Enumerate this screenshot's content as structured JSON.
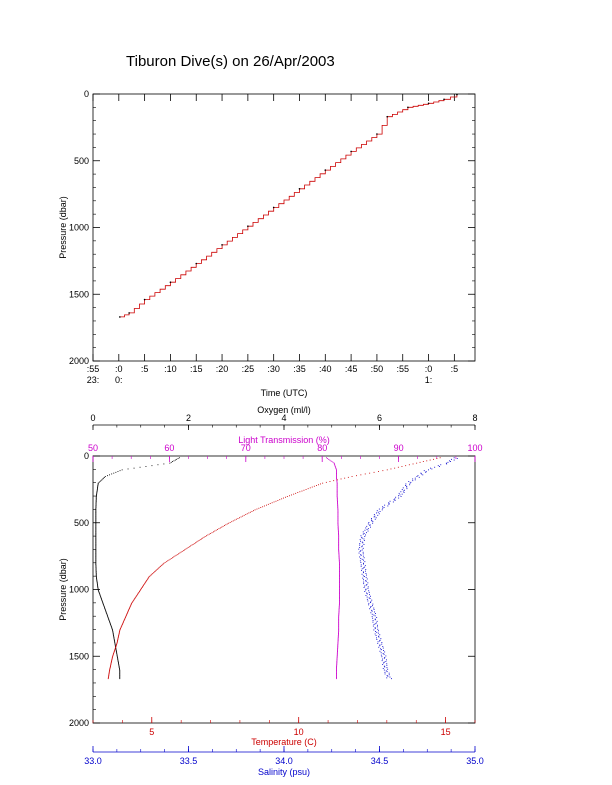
{
  "title": "Tiburon Dive(s) on 26/Apr/2003",
  "chart_data": [
    {
      "type": "line",
      "name": "pressure-vs-time",
      "xlabel": "Time (UTC)",
      "ylabel": "Pressure (dbar)",
      "ylim": [
        2000,
        0
      ],
      "yticks": [
        0,
        500,
        1000,
        1500,
        2000
      ],
      "xticks": [
        {
          "minutes": -5,
          "top": ":55",
          "bottom": "23:"
        },
        {
          "minutes": 0,
          "top": ":0",
          "bottom": "0:"
        },
        {
          "minutes": 5,
          "top": ":5",
          "bottom": ""
        },
        {
          "minutes": 10,
          "top": ":10",
          "bottom": ""
        },
        {
          "minutes": 15,
          "top": ":15",
          "bottom": ""
        },
        {
          "minutes": 20,
          "top": ":20",
          "bottom": ""
        },
        {
          "minutes": 25,
          "top": ":25",
          "bottom": ""
        },
        {
          "minutes": 30,
          "top": ":30",
          "bottom": ""
        },
        {
          "minutes": 35,
          "top": ":35",
          "bottom": ""
        },
        {
          "minutes": 40,
          "top": ":40",
          "bottom": ""
        },
        {
          "minutes": 45,
          "top": ":45",
          "bottom": ""
        },
        {
          "minutes": 50,
          "top": ":50",
          "bottom": ""
        },
        {
          "minutes": 55,
          "top": ":55",
          "bottom": ""
        },
        {
          "minutes": 60,
          "top": ":0",
          "bottom": "1:"
        },
        {
          "minutes": 65,
          "top": ":5",
          "bottom": ""
        }
      ],
      "xlim_minutes": [
        -5,
        69
      ],
      "line_color": "#cc0000",
      "x_minutes": [
        0.2,
        2,
        5,
        10,
        15,
        20,
        25,
        30,
        35,
        40,
        45,
        50,
        52,
        56,
        60,
        63,
        65.5
      ],
      "pressure": [
        1670,
        1640,
        1540,
        1410,
        1270,
        1130,
        990,
        850,
        710,
        570,
        430,
        300,
        170,
        100,
        70,
        40,
        5
      ]
    },
    {
      "type": "scatter",
      "name": "profiles",
      "ylabel": "Pressure (dbar)",
      "ylim": [
        2000,
        0
      ],
      "yticks": [
        0,
        500,
        1000,
        1500,
        2000
      ],
      "pressure": [
        10,
        50,
        100,
        150,
        200,
        300,
        400,
        500,
        600,
        700,
        800,
        900,
        1000,
        1100,
        1200,
        1300,
        1400,
        1500,
        1600,
        1670
      ],
      "axes": [
        {
          "key": "oxygen",
          "label": "Oxygen (ml/l)",
          "color": "#000000",
          "position": "top",
          "min": 0,
          "max": 8,
          "ticks": [
            "0",
            "2",
            "4",
            "6",
            "8"
          ]
        },
        {
          "key": "transmission",
          "label": "Light Transmission (%)",
          "color": "#cc00cc",
          "position": "top-inner",
          "min": 50,
          "max": 100,
          "ticks": [
            "50",
            "60",
            "70",
            "80",
            "90",
            "100"
          ]
        },
        {
          "key": "temperature",
          "label": "Temperature (C)",
          "color": "#cc0000",
          "position": "bottom",
          "min": 3,
          "max": 16,
          "ticks": [
            "5",
            "10",
            "15"
          ],
          "tickvals": [
            5,
            10,
            15
          ]
        },
        {
          "key": "salinity",
          "label": "Salinity (psu)",
          "color": "#0000cc",
          "position": "bottom-outer",
          "min": 33.0,
          "max": 35.0,
          "ticks": [
            "33.0",
            "33.5",
            "34.0",
            "34.5",
            "35.0"
          ]
        }
      ],
      "series": [
        {
          "key": "oxygen",
          "color": "#000000",
          "values": [
            1.8,
            1.6,
            0.6,
            0.25,
            0.1,
            0.06,
            0.05,
            0.05,
            0.05,
            0.05,
            0.05,
            0.06,
            0.1,
            0.2,
            0.3,
            0.4,
            0.45,
            0.5,
            0.55,
            0.55
          ]
        },
        {
          "key": "transmission",
          "color": "#cc00cc",
          "values": [
            80.5,
            81.5,
            81.8,
            81.8,
            81.9,
            81.9,
            82,
            82,
            82.1,
            82.1,
            82.2,
            82.2,
            82.2,
            82.2,
            82.1,
            82.1,
            82,
            81.9,
            81.8,
            81.8
          ]
        },
        {
          "key": "temperature",
          "color": "#cc0000",
          "values": [
            14.8,
            14.0,
            13.0,
            11.8,
            10.8,
            9.6,
            8.5,
            7.6,
            6.8,
            6.1,
            5.4,
            4.9,
            4.6,
            4.3,
            4.1,
            3.9,
            3.8,
            3.65,
            3.55,
            3.5
          ]
        },
        {
          "key": "salinity",
          "color": "#0000cc",
          "values": [
            34.9,
            34.85,
            34.75,
            34.7,
            34.65,
            34.6,
            34.5,
            34.45,
            34.41,
            34.4,
            34.41,
            34.42,
            34.43,
            34.45,
            34.47,
            34.48,
            34.5,
            34.52,
            34.53,
            34.55
          ]
        }
      ]
    }
  ]
}
